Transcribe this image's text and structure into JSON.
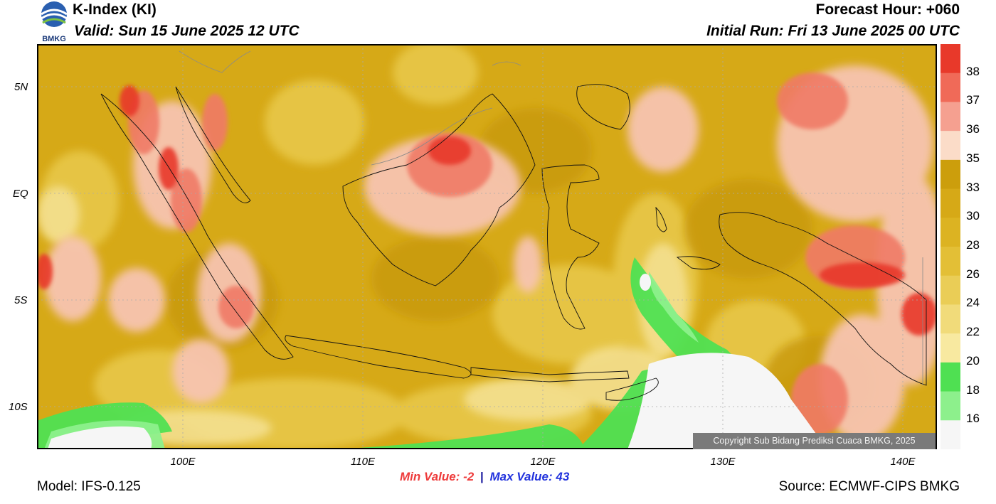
{
  "header": {
    "title": "K-Index (KI)",
    "valid": "Valid: Sun 15 June 2025 12 UTC",
    "forecast_hour": "Forecast Hour: +060",
    "initial_run": "Initial Run: Fri 13 June 2025 00 UTC",
    "logo_text": "BMKG"
  },
  "map": {
    "lat_labels": [
      "5N",
      "EQ",
      "5S",
      "10S"
    ],
    "lon_labels": [
      "100E",
      "110E",
      "120E",
      "130E",
      "140E"
    ],
    "copyright": "Copyright Sub Bidang Prediksi Cuaca BMKG, 2025"
  },
  "stats": {
    "min_label": "Min Value:",
    "min_value": "-2",
    "separator": "|",
    "max_label": "Max Value:",
    "max_value": "43"
  },
  "colorbar": {
    "labels": [
      "38",
      "37",
      "36",
      "35",
      "33",
      "30",
      "28",
      "26",
      "24",
      "22",
      "20",
      "18",
      "16"
    ],
    "colors": [
      "#e8392a",
      "#f06a58",
      "#f5a090",
      "#fbdcc8",
      "#cc9e0c",
      "#d6a917",
      "#dcb322",
      "#e3bf36",
      "#eacd56",
      "#f1db7a",
      "#f8e9a0",
      "#4fe052",
      "#8df08c",
      "#f6f6f6"
    ]
  },
  "footer": {
    "model": "Model: IFS-0.125",
    "source": "Source: ECMWF-CIPS BMKG"
  }
}
